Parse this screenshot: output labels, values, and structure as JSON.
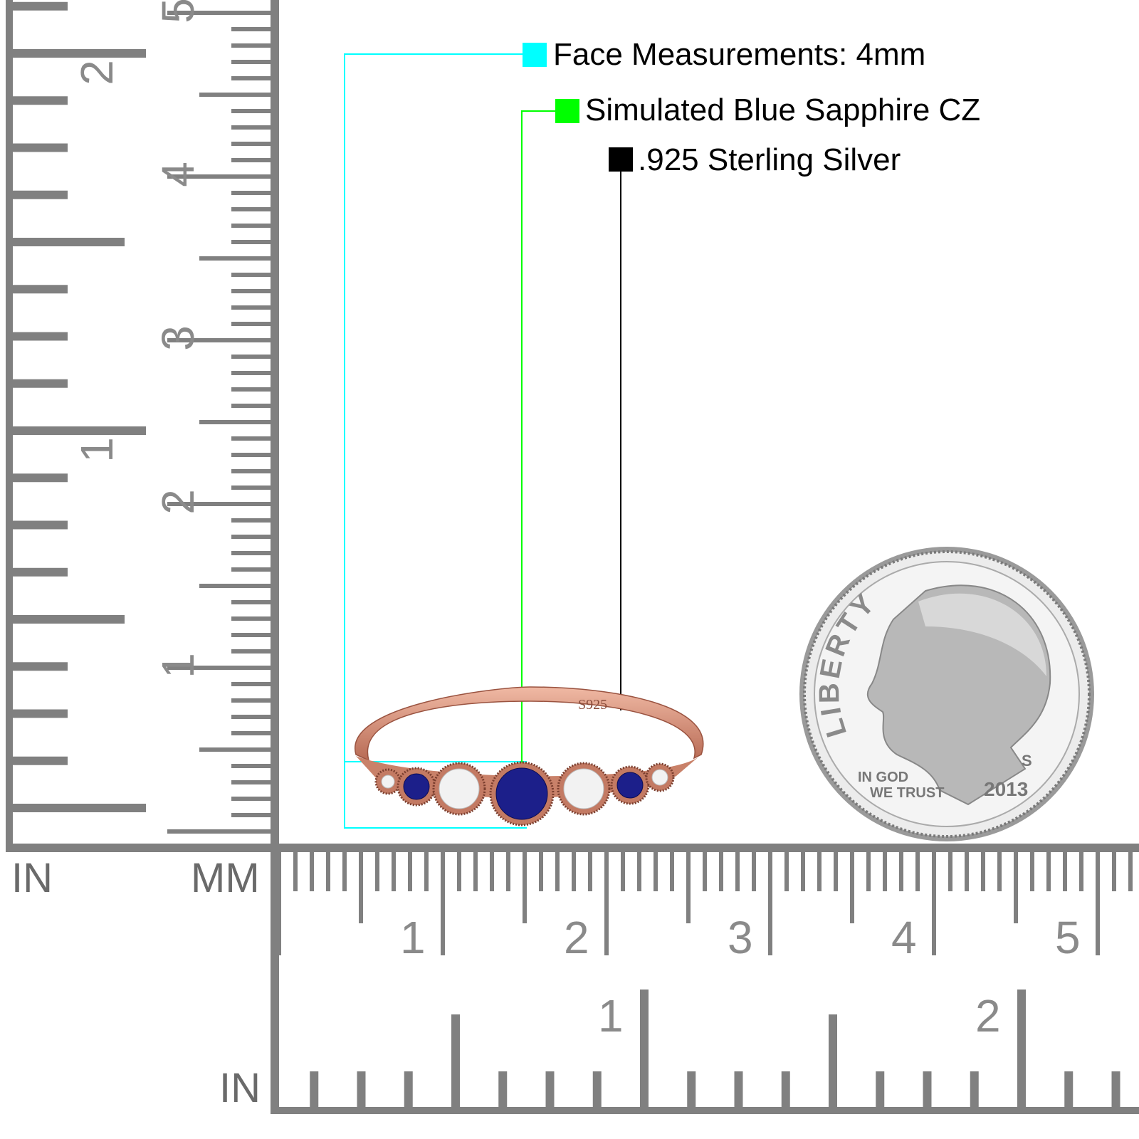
{
  "callouts": [
    {
      "text": "Face Measurements: 4mm",
      "color": "#00ffff"
    },
    {
      "text": "Simulated Blue Sapphire CZ",
      "color": "#00ff00"
    },
    {
      "text": ".925 Sterling Silver",
      "color": "#000000"
    }
  ],
  "ruler": {
    "left_unit_in": "IN",
    "left_unit_mm": "MM",
    "bottom_unit_in": "IN",
    "mm_labels": [
      "1",
      "2",
      "3",
      "4",
      "5"
    ],
    "in_labels": [
      "1",
      "2"
    ],
    "color": "#808080"
  },
  "ring": {
    "stamp": "S925",
    "metal_color": "#d9957e",
    "sapphire_color": "#1c1f8a"
  },
  "coin": {
    "top_text": "LIBERTY",
    "motto_line1": "IN GOD",
    "motto_line2": "WE TRUST",
    "year": "2013",
    "mint_mark": "S"
  }
}
